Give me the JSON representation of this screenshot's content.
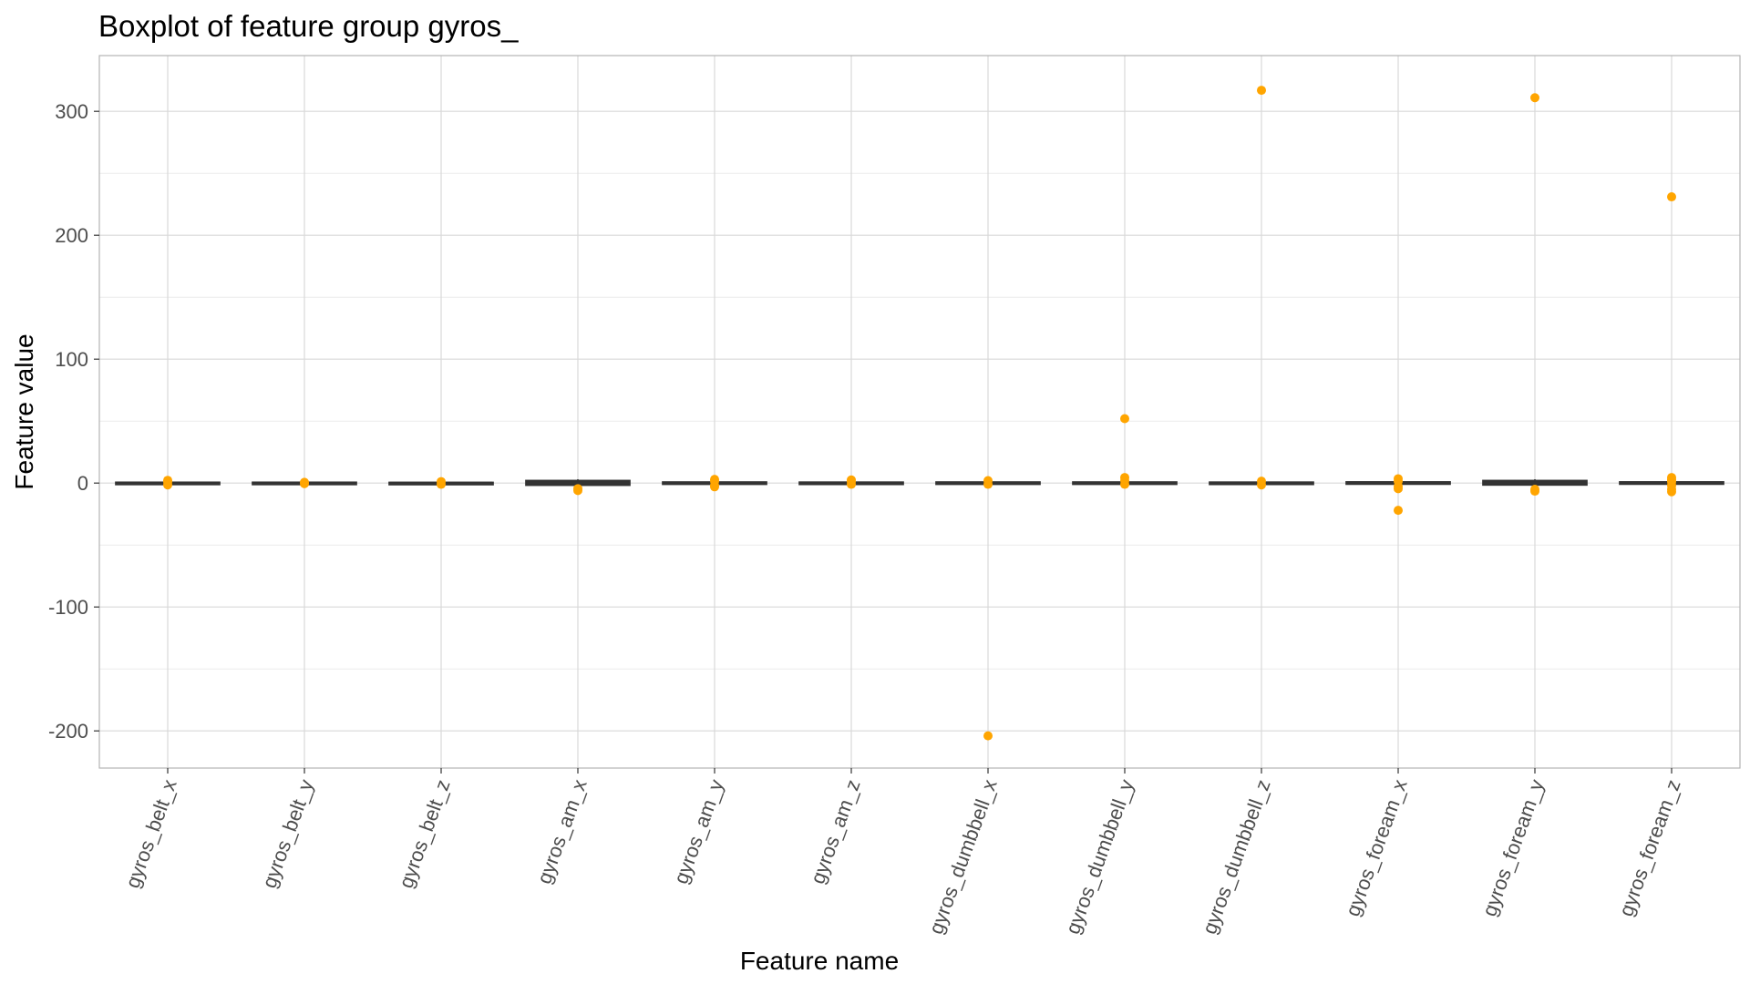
{
  "chart_data": {
    "type": "boxplot",
    "title": "Boxplot of feature group gyros_",
    "xlabel": "Feature name",
    "ylabel": "Feature value",
    "ylim": [
      -230,
      345
    ],
    "y_ticks": [
      -200,
      -100,
      0,
      100,
      200,
      300
    ],
    "grid": true,
    "outlier_color": "#ffa500",
    "box_color": "#333333",
    "categories": [
      "gyros_belt_x",
      "gyros_belt_y",
      "gyros_belt_z",
      "gyros_am_x",
      "gyros_am_y",
      "gyros_am_z",
      "gyros_dumbbell_x",
      "gyros_dumbbell_y",
      "gyros_dumbbell_z",
      "gyros_foream_x",
      "gyros_foream_y",
      "gyros_foream_z"
    ],
    "boxes": [
      {
        "q1": -0.1,
        "median": 0.0,
        "q3": 0.1,
        "whisker_low": -0.5,
        "whisker_high": 0.5,
        "outliers": [
          2.2,
          -1.5,
          1.0
        ]
      },
      {
        "q1": -0.05,
        "median": 0.0,
        "q3": 0.1,
        "whisker_low": -0.3,
        "whisker_high": 0.3,
        "outliers": [
          0.6,
          -0.5
        ]
      },
      {
        "q1": -0.2,
        "median": -0.1,
        "q3": 0.0,
        "whisker_low": -0.5,
        "whisker_high": 0.4,
        "outliers": [
          1.2,
          -1.0
        ]
      },
      {
        "q1": -1.2,
        "median": 0.0,
        "q3": 1.5,
        "whisker_low": -3.0,
        "whisker_high": 3.0,
        "outliers": [
          -6.0,
          -4.5
        ]
      },
      {
        "q1": -0.3,
        "median": 0.0,
        "q3": 0.3,
        "whisker_low": -1.0,
        "whisker_high": 1.0,
        "outliers": [
          3.0,
          1.5,
          -3.0,
          -2.0
        ]
      },
      {
        "q1": -0.2,
        "median": 0.0,
        "q3": 0.2,
        "whisker_low": -0.6,
        "whisker_high": 0.6,
        "outliers": [
          2.5,
          1.2,
          -1.0
        ]
      },
      {
        "q1": -0.1,
        "median": 0.0,
        "q3": 0.3,
        "whisker_low": -0.6,
        "whisker_high": 0.8,
        "outliers": [
          -204,
          2.0,
          -1.0
        ]
      },
      {
        "q1": -0.2,
        "median": 0.0,
        "q3": 0.3,
        "whisker_low": -0.8,
        "whisker_high": 0.8,
        "outliers": [
          52,
          4.5,
          2.0,
          -1.0
        ]
      },
      {
        "q1": -0.2,
        "median": 0.0,
        "q3": 0.2,
        "whisker_low": -0.6,
        "whisker_high": 0.6,
        "outliers": [
          317,
          1.5,
          -1.5
        ]
      },
      {
        "q1": -0.3,
        "median": 0.0,
        "q3": 0.4,
        "whisker_low": -1.0,
        "whisker_high": 1.0,
        "outliers": [
          3.5,
          1.5,
          -2.5,
          -4.5,
          -22
        ]
      },
      {
        "q1": -1.0,
        "median": 0.0,
        "q3": 1.5,
        "whisker_low": -3.0,
        "whisker_high": 3.0,
        "outliers": [
          311,
          -6.5,
          -5.0
        ]
      },
      {
        "q1": -0.3,
        "median": 0.0,
        "q3": 0.4,
        "whisker_low": -1.0,
        "whisker_high": 1.0,
        "outliers": [
          231,
          4.5,
          2.5,
          1.0,
          -2.0,
          -5.0,
          -7.0
        ]
      }
    ]
  }
}
